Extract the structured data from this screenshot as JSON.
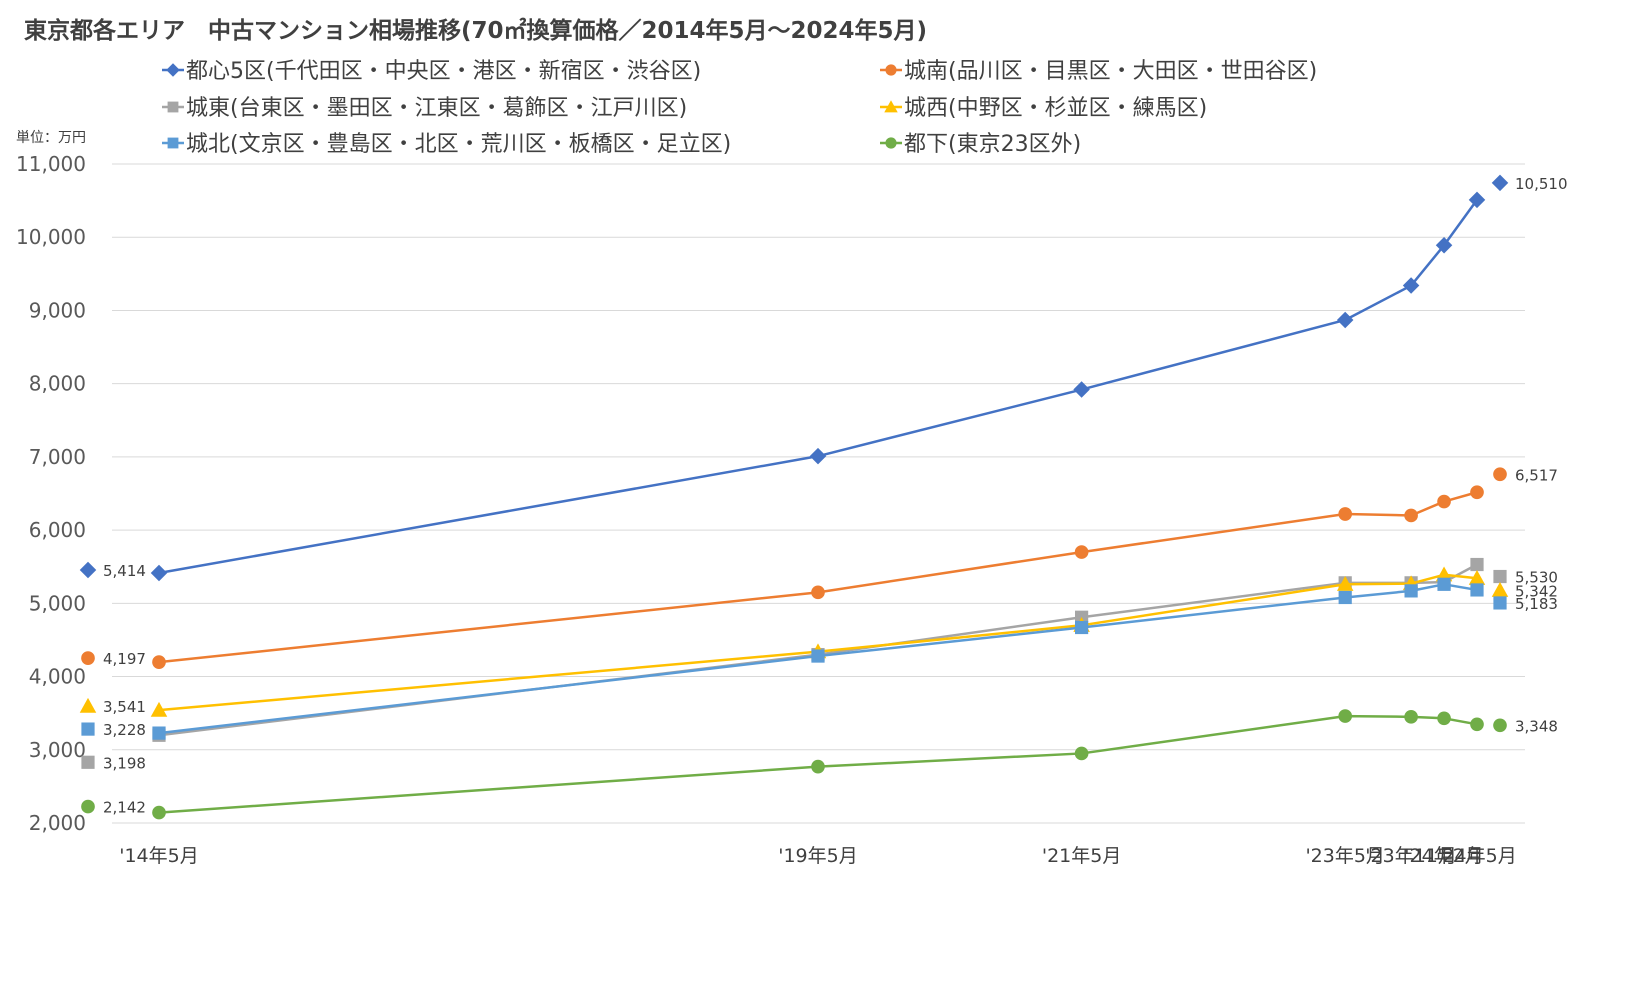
{
  "chart_data": {
    "type": "line",
    "title": "東京都各エリア　中古マンション相場推移(70㎡換算価格／2014年5月～2024年5月)",
    "unit_label": "単位：万円",
    "ylim": [
      2000,
      11000
    ],
    "y_ticks": [
      "2,000",
      "3,000",
      "4,000",
      "5,000",
      "6,000",
      "7,000",
      "8,000",
      "9,000",
      "10,000",
      "11,000"
    ],
    "y_tick_values": [
      2000,
      3000,
      4000,
      5000,
      6000,
      7000,
      8000,
      9000,
      10000,
      11000
    ],
    "categories": [
      "'14年5月",
      "'19年5月",
      "'21年5月",
      "'23年5月",
      "'23年11月",
      "'24年2月",
      "'24年5月"
    ],
    "x_months": [
      0,
      60,
      84,
      108,
      114,
      117,
      120
    ],
    "grid": true,
    "legend_position": "top",
    "series": [
      {
        "name": "都心5区(千代田区・中央区・港区・新宿区・渋谷区)",
        "color": "#4472C4",
        "marker": "diamond",
        "values": [
          5414,
          7010,
          7920,
          8870,
          9340,
          9890,
          10510
        ],
        "start_label": "5,414",
        "end_label": "10,510"
      },
      {
        "name": "城南(品川区・目黒区・大田区・世田谷区)",
        "color": "#ED7D31",
        "marker": "circle",
        "values": [
          4197,
          5150,
          5700,
          6220,
          6200,
          6390,
          6517
        ],
        "start_label": "4,197",
        "end_label": "6,517"
      },
      {
        "name": "城東(台東区・墨田区・江東区・葛飾区・江戸川区)",
        "color": "#A5A5A5",
        "marker": "square",
        "values": [
          3198,
          4300,
          4810,
          5280,
          5280,
          5290,
          5530
        ],
        "start_label": "3,198",
        "end_label": "5,530"
      },
      {
        "name": "城西(中野区・杉並区・練馬区)",
        "color": "#FFC000",
        "marker": "triangle",
        "values": [
          3541,
          4340,
          4700,
          5260,
          5270,
          5390,
          5342
        ],
        "start_label": "3,541",
        "end_label": "5,342"
      },
      {
        "name": "城北(文京区・豊島区・北区・荒川区・板橋区・足立区)",
        "color": "#5B9BD5",
        "marker": "square",
        "values": [
          3228,
          4280,
          4670,
          5080,
          5170,
          5260,
          5183
        ],
        "start_label": "3,228",
        "end_label": "5,183"
      },
      {
        "name": "都下(東京23区外)",
        "color": "#70AD47",
        "marker": "circle",
        "values": [
          2142,
          2770,
          2950,
          3460,
          3450,
          3430,
          3348
        ],
        "start_label": "2,142",
        "end_label": "3,348"
      }
    ]
  }
}
